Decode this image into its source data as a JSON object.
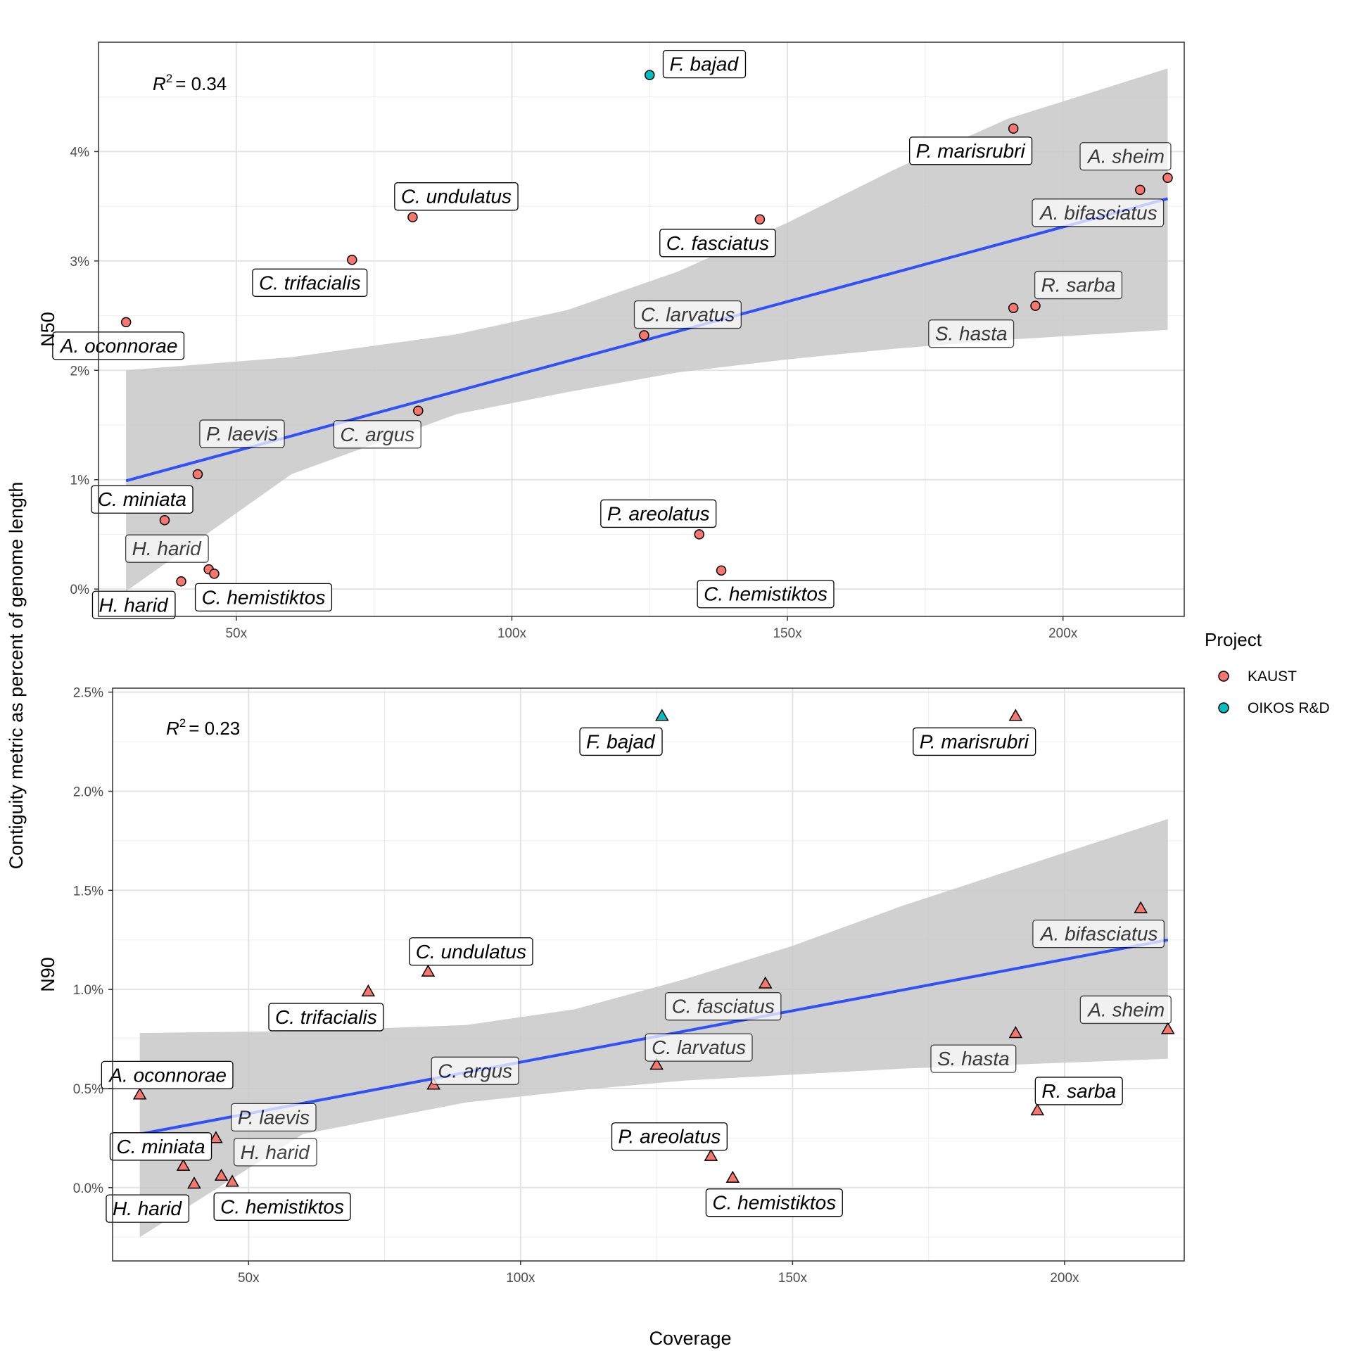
{
  "chart_data": {
    "type": "scatter",
    "shared": {
      "xlabel": "Coverage",
      "ylabel": "Contiguity metric as percent of genome length",
      "xlim": [
        25,
        222
      ],
      "x_ticks": [
        50,
        100,
        150,
        200
      ],
      "x_tick_labels": [
        "50x",
        "100x",
        "150x",
        "200x"
      ],
      "legend": {
        "title": "Project",
        "position": "right",
        "entries": [
          {
            "name": "KAUST",
            "color": "#F8766D"
          },
          {
            "name": "OIKOS R&D",
            "color": "#00BFC4"
          }
        ]
      },
      "fit_line_color": "#3050F8",
      "ci_band_color": "#c8c8c8"
    },
    "panels": [
      {
        "name": "N50",
        "ylabel": "N50",
        "shape": "circle",
        "ylim": [
          -0.25,
          5.0
        ],
        "y_ticks": [
          0,
          1,
          2,
          3,
          4
        ],
        "y_tick_labels": [
          "0%",
          "1%",
          "2%",
          "3%",
          "4%"
        ],
        "r2_label": "= 0.34",
        "r2_symbol": "R",
        "r2_sup": "2",
        "fit": {
          "x": [
            30,
            219
          ],
          "y": [
            0.99,
            3.57
          ]
        },
        "ci_band": {
          "x": [
            30,
            60,
            90,
            110,
            130,
            150,
            170,
            190,
            219
          ],
          "lower": [
            -0.02,
            1.05,
            1.6,
            1.8,
            1.98,
            2.1,
            2.2,
            2.28,
            2.37
          ],
          "upper": [
            2.0,
            2.12,
            2.33,
            2.55,
            2.9,
            3.35,
            3.85,
            4.3,
            4.76
          ]
        },
        "points": [
          {
            "x": 125,
            "y": 4.7,
            "project": "OIKOS R&D",
            "label": "F. bajad"
          },
          {
            "x": 191,
            "y": 4.21,
            "project": "KAUST",
            "label": "P. marisrubri"
          },
          {
            "x": 219,
            "y": 3.76,
            "project": "KAUST",
            "label": "A. sheim"
          },
          {
            "x": 214,
            "y": 3.65,
            "project": "KAUST",
            "label": "A. bifasciatus"
          },
          {
            "x": 82,
            "y": 3.4,
            "project": "KAUST",
            "label": "C. undulatus"
          },
          {
            "x": 145,
            "y": 3.38,
            "project": "KAUST",
            "label": "C. fasciatus"
          },
          {
            "x": 71,
            "y": 3.01,
            "project": "KAUST",
            "label": "C. trifacialis"
          },
          {
            "x": 195,
            "y": 2.59,
            "project": "KAUST",
            "label": "R. sarba"
          },
          {
            "x": 191,
            "y": 2.57,
            "project": "KAUST",
            "label": "S. hasta"
          },
          {
            "x": 30,
            "y": 2.44,
            "project": "KAUST",
            "label": "A. oconnorae"
          },
          {
            "x": 124,
            "y": 2.32,
            "project": "KAUST",
            "label": "C. larvatus"
          },
          {
            "x": 83,
            "y": 1.63,
            "project": "KAUST",
            "label": "C. argus"
          },
          {
            "x": 43,
            "y": 1.05,
            "project": "KAUST",
            "label": "P. laevis"
          },
          {
            "x": 37,
            "y": 0.63,
            "project": "KAUST",
            "label": "C. miniata"
          },
          {
            "x": 134,
            "y": 0.5,
            "project": "KAUST",
            "label": "P. areolatus"
          },
          {
            "x": 45,
            "y": 0.18,
            "project": "KAUST",
            "label": "H. harid"
          },
          {
            "x": 138,
            "y": 0.17,
            "project": "KAUST",
            "label": "C. hemistiktos"
          },
          {
            "x": 46,
            "y": 0.14,
            "project": "KAUST",
            "label": "C. hemistiktos"
          },
          {
            "x": 40,
            "y": 0.07,
            "project": "KAUST",
            "label": "H. harid"
          }
        ]
      },
      {
        "name": "N90",
        "ylabel": "N90",
        "shape": "triangle",
        "ylim": [
          -0.37,
          2.52
        ],
        "y_ticks": [
          0.0,
          0.5,
          1.0,
          1.5,
          2.0,
          2.5
        ],
        "y_tick_labels": [
          "0.0%",
          "0.5%",
          "1.0%",
          "1.5%",
          "2.0%",
          "2.5%"
        ],
        "r2_label": "= 0.23",
        "r2_symbol": "R",
        "r2_sup": "2",
        "fit": {
          "x": [
            30,
            219
          ],
          "y": [
            0.27,
            1.25
          ]
        },
        "ci_band": {
          "x": [
            30,
            60,
            90,
            110,
            130,
            150,
            170,
            190,
            219
          ],
          "lower": [
            -0.25,
            0.27,
            0.43,
            0.49,
            0.54,
            0.57,
            0.6,
            0.62,
            0.65
          ],
          "upper": [
            0.78,
            0.79,
            0.82,
            0.9,
            1.05,
            1.22,
            1.42,
            1.6,
            1.86
          ]
        },
        "points": [
          {
            "x": 126,
            "y": 2.38,
            "project": "OIKOS R&D",
            "label": "F. bajad"
          },
          {
            "x": 191,
            "y": 2.38,
            "project": "KAUST",
            "label": "P. marisrubri"
          },
          {
            "x": 214,
            "y": 1.41,
            "project": "KAUST",
            "label": "A. bifasciatus"
          },
          {
            "x": 83,
            "y": 1.09,
            "project": "KAUST",
            "label": "C. undulatus"
          },
          {
            "x": 145,
            "y": 1.03,
            "project": "KAUST",
            "label": "C. fasciatus"
          },
          {
            "x": 72,
            "y": 0.99,
            "project": "KAUST",
            "label": "C. trifacialis"
          },
          {
            "x": 219,
            "y": 0.8,
            "project": "KAUST",
            "label": "A. sheim"
          },
          {
            "x": 191,
            "y": 0.78,
            "project": "KAUST",
            "label": "S. hasta"
          },
          {
            "x": 125,
            "y": 0.62,
            "project": "KAUST",
            "label": "C. larvatus"
          },
          {
            "x": 84,
            "y": 0.52,
            "project": "KAUST",
            "label": "C. argus"
          },
          {
            "x": 30,
            "y": 0.47,
            "project": "KAUST",
            "label": "A. oconnorae"
          },
          {
            "x": 195,
            "y": 0.39,
            "project": "KAUST",
            "label": "R. sarba"
          },
          {
            "x": 44,
            "y": 0.25,
            "project": "KAUST",
            "label": "P. laevis"
          },
          {
            "x": 135,
            "y": 0.16,
            "project": "KAUST",
            "label": "P. areolatus"
          },
          {
            "x": 38,
            "y": 0.11,
            "project": "KAUST",
            "label": "C. miniata"
          },
          {
            "x": 45,
            "y": 0.06,
            "project": "KAUST",
            "label": "H. harid"
          },
          {
            "x": 139,
            "y": 0.05,
            "project": "KAUST",
            "label": "C. hemistiktos"
          },
          {
            "x": 47,
            "y": 0.03,
            "project": "KAUST",
            "label": "C. hemistiktos"
          },
          {
            "x": 40,
            "y": 0.02,
            "project": "KAUST",
            "label": "H. harid"
          }
        ]
      }
    ]
  }
}
